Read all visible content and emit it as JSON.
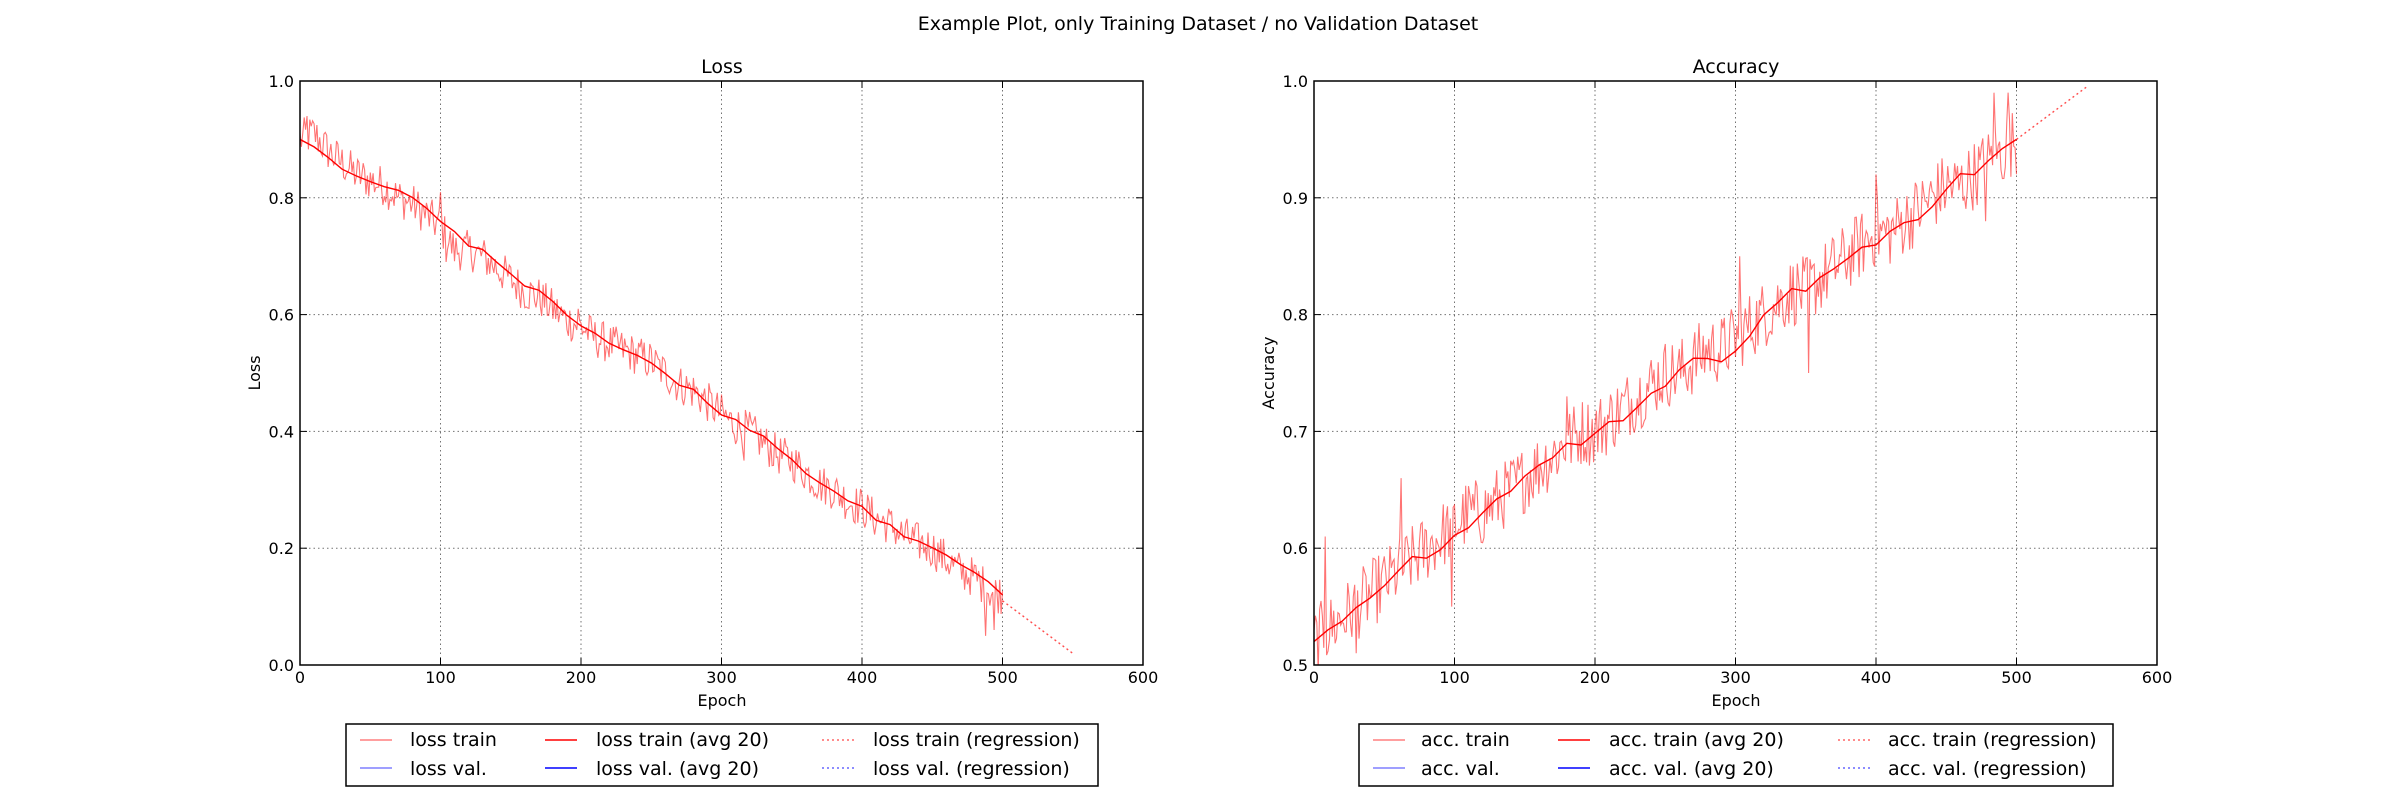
{
  "figure": {
    "suptitle": "Example Plot, only Training Dataset / no Validation Dataset"
  },
  "colors": {
    "train": "#ff0000",
    "val": "#0000ff",
    "grid": "#000000"
  },
  "chart_data": [
    {
      "type": "line",
      "title": "Loss",
      "xlabel": "Epoch",
      "ylabel": "Loss",
      "xlim": [
        0,
        600
      ],
      "ylim": [
        0.0,
        1.0
      ],
      "xticks": [
        0,
        100,
        200,
        300,
        400,
        500,
        600
      ],
      "xtick_labels": [
        "0",
        "100",
        "200",
        "300",
        "400",
        "500",
        "600"
      ],
      "yticks": [
        0.0,
        0.2,
        0.4,
        0.6,
        0.8,
        1.0
      ],
      "ytick_labels": [
        "0.0",
        "0.2",
        "0.4",
        "0.6",
        "0.8",
        "1.0"
      ],
      "grid": true,
      "legend_position": "bottom",
      "legend": [
        [
          "loss train",
          "loss val."
        ],
        [
          "loss train (avg 20)",
          "loss val. (avg 20)"
        ],
        [
          "loss train (regression)",
          "loss val. (regression)"
        ]
      ],
      "series": [
        {
          "name": "loss train",
          "color": "#ff0000",
          "style": "raw",
          "x": [
            0,
            10,
            20,
            30,
            40,
            50,
            60,
            70,
            80,
            90,
            100,
            110,
            120,
            130,
            140,
            150,
            160,
            170,
            180,
            190,
            200,
            210,
            220,
            230,
            240,
            250,
            260,
            270,
            280,
            290,
            300,
            310,
            320,
            330,
            340,
            350,
            360,
            370,
            380,
            390,
            400,
            410,
            420,
            430,
            440,
            450,
            460,
            470,
            480,
            490,
            500
          ],
          "y": [
            0.9,
            0.91,
            0.88,
            0.86,
            0.84,
            0.83,
            0.82,
            0.8,
            0.79,
            0.77,
            0.75,
            0.71,
            0.71,
            0.7,
            0.68,
            0.66,
            0.64,
            0.63,
            0.61,
            0.59,
            0.58,
            0.56,
            0.55,
            0.54,
            0.53,
            0.52,
            0.5,
            0.48,
            0.47,
            0.45,
            0.43,
            0.41,
            0.4,
            0.38,
            0.36,
            0.35,
            0.33,
            0.31,
            0.3,
            0.28,
            0.27,
            0.25,
            0.24,
            0.22,
            0.21,
            0.2,
            0.18,
            0.16,
            0.15,
            0.13,
            0.12
          ],
          "noise": 0.035,
          "spikes": [
            [
              5,
              0.94
            ],
            [
              100,
              0.81
            ],
            [
              104,
              0.69
            ],
            [
              198,
              0.61
            ],
            [
              316,
              0.35
            ],
            [
              488,
              0.05
            ],
            [
              494,
              0.06
            ]
          ]
        },
        {
          "name": "loss train (avg 20)",
          "color": "#ff0000",
          "style": "avg",
          "x": [
            0,
            10,
            20,
            30,
            40,
            50,
            60,
            70,
            80,
            90,
            100,
            110,
            120,
            130,
            140,
            150,
            160,
            170,
            180,
            190,
            200,
            210,
            220,
            230,
            240,
            250,
            260,
            270,
            280,
            290,
            300,
            310,
            320,
            330,
            340,
            350,
            360,
            370,
            380,
            390,
            400,
            410,
            420,
            430,
            440,
            450,
            460,
            470,
            480,
            490,
            500
          ],
          "y": [
            0.9,
            0.89,
            0.87,
            0.85,
            0.84,
            0.83,
            0.82,
            0.81,
            0.8,
            0.78,
            0.76,
            0.74,
            0.72,
            0.71,
            0.69,
            0.67,
            0.65,
            0.64,
            0.62,
            0.6,
            0.58,
            0.57,
            0.55,
            0.54,
            0.53,
            0.52,
            0.5,
            0.48,
            0.47,
            0.45,
            0.43,
            0.42,
            0.4,
            0.39,
            0.37,
            0.35,
            0.33,
            0.31,
            0.3,
            0.28,
            0.27,
            0.25,
            0.24,
            0.22,
            0.21,
            0.2,
            0.19,
            0.17,
            0.16,
            0.14,
            0.12
          ]
        },
        {
          "name": "loss train (regression)",
          "color": "#ff0000",
          "style": "regression",
          "x": [
            500,
            550
          ],
          "y": [
            0.11,
            0.02
          ]
        }
      ]
    },
    {
      "type": "line",
      "title": "Accuracy",
      "xlabel": "Epoch",
      "ylabel": "Accuracy",
      "xlim": [
        0,
        600
      ],
      "ylim": [
        0.5,
        1.0
      ],
      "xticks": [
        0,
        100,
        200,
        300,
        400,
        500,
        600
      ],
      "xtick_labels": [
        "0",
        "100",
        "200",
        "300",
        "400",
        "500",
        "600"
      ],
      "yticks": [
        0.5,
        0.6,
        0.7,
        0.8,
        0.9,
        1.0
      ],
      "ytick_labels": [
        "0.5",
        "0.6",
        "0.7",
        "0.8",
        "0.9",
        "1.0"
      ],
      "grid": true,
      "legend_position": "bottom",
      "legend": [
        [
          "acc. train",
          "acc. val."
        ],
        [
          "acc. train (avg 20)",
          "acc. val. (avg 20)"
        ],
        [
          "acc. train (regression)",
          "acc. val. (regression)"
        ]
      ],
      "series": [
        {
          "name": "acc. train",
          "color": "#ff0000",
          "style": "raw",
          "x": [
            0,
            10,
            20,
            30,
            40,
            50,
            60,
            70,
            80,
            90,
            100,
            110,
            120,
            130,
            140,
            150,
            160,
            170,
            180,
            190,
            200,
            210,
            220,
            230,
            240,
            250,
            260,
            270,
            280,
            290,
            300,
            310,
            320,
            330,
            340,
            350,
            360,
            370,
            380,
            390,
            400,
            410,
            420,
            430,
            440,
            450,
            460,
            470,
            480,
            490,
            500
          ],
          "y": [
            0.52,
            0.53,
            0.54,
            0.55,
            0.56,
            0.57,
            0.58,
            0.59,
            0.6,
            0.61,
            0.62,
            0.63,
            0.63,
            0.64,
            0.65,
            0.66,
            0.67,
            0.68,
            0.69,
            0.7,
            0.7,
            0.71,
            0.72,
            0.73,
            0.74,
            0.75,
            0.75,
            0.76,
            0.77,
            0.77,
            0.78,
            0.79,
            0.8,
            0.81,
            0.82,
            0.82,
            0.83,
            0.84,
            0.85,
            0.86,
            0.87,
            0.87,
            0.88,
            0.89,
            0.9,
            0.91,
            0.91,
            0.92,
            0.93,
            0.94,
            0.95
          ],
          "noise": 0.03,
          "spikes": [
            [
              8,
              0.61
            ],
            [
              30,
              0.51
            ],
            [
              62,
              0.66
            ],
            [
              98,
              0.55
            ],
            [
              180,
              0.73
            ],
            [
              303,
              0.85
            ],
            [
              352,
              0.75
            ],
            [
              400,
              0.92
            ],
            [
              484,
              0.99
            ],
            [
              494,
              0.99
            ],
            [
              478,
              0.88
            ]
          ]
        },
        {
          "name": "acc. train (avg 20)",
          "color": "#ff0000",
          "style": "avg",
          "x": [
            0,
            10,
            20,
            30,
            40,
            50,
            60,
            70,
            80,
            90,
            100,
            110,
            120,
            130,
            140,
            150,
            160,
            170,
            180,
            190,
            200,
            210,
            220,
            230,
            240,
            250,
            260,
            270,
            280,
            290,
            300,
            310,
            320,
            330,
            340,
            350,
            360,
            370,
            380,
            390,
            400,
            410,
            420,
            430,
            440,
            450,
            460,
            470,
            480,
            490,
            500
          ],
          "y": [
            0.52,
            0.53,
            0.54,
            0.55,
            0.56,
            0.57,
            0.58,
            0.59,
            0.59,
            0.6,
            0.61,
            0.62,
            0.63,
            0.64,
            0.65,
            0.66,
            0.67,
            0.68,
            0.69,
            0.69,
            0.7,
            0.71,
            0.71,
            0.72,
            0.73,
            0.74,
            0.75,
            0.76,
            0.76,
            0.76,
            0.77,
            0.78,
            0.8,
            0.81,
            0.82,
            0.82,
            0.83,
            0.84,
            0.85,
            0.86,
            0.86,
            0.87,
            0.88,
            0.88,
            0.89,
            0.91,
            0.92,
            0.92,
            0.93,
            0.94,
            0.95
          ]
        },
        {
          "name": "acc. train (regression)",
          "color": "#ff0000",
          "style": "regression",
          "x": [
            500,
            550
          ],
          "y": [
            0.95,
            0.995
          ]
        }
      ]
    }
  ]
}
